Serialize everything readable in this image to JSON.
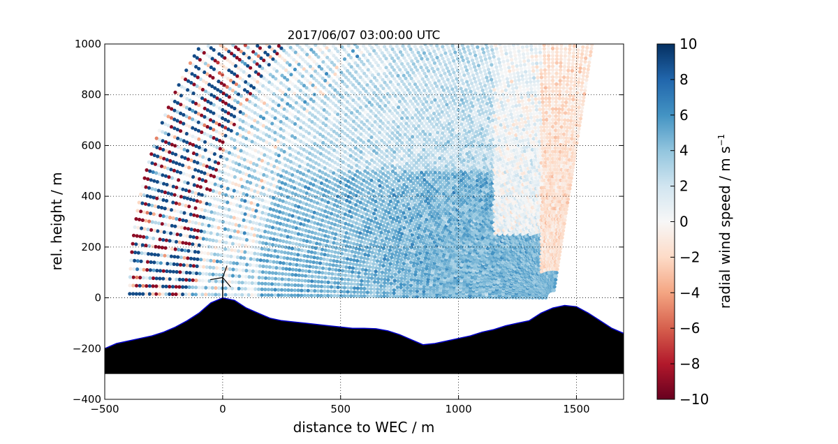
{
  "chart_data": {
    "type": "scatter",
    "title": "2017/06/07 03:00:00 UTC",
    "xlabel": "distance to WEC / m",
    "ylabel": "rel. height / m",
    "xlim": [
      -500,
      1700
    ],
    "ylim": [
      -400,
      1000
    ],
    "xticks": [
      -500,
      0,
      500,
      1000,
      1500
    ],
    "yticks": [
      -400,
      -200,
      0,
      200,
      400,
      600,
      800,
      1000
    ],
    "grid": true,
    "lidar_position": {
      "x": 1400,
      "y": 0
    },
    "scan_range_m": [
      0,
      1500
    ],
    "wec_position": {
      "x": 0,
      "hub_height": 80
    },
    "colorbar": {
      "label": "radial wind speed / m s",
      "label_superscript": "−1",
      "range": [
        -10,
        10
      ],
      "ticks": [
        -10,
        -8,
        -6,
        -4,
        -2,
        0,
        2,
        4,
        6,
        8,
        10
      ],
      "colormap": [
        "#67001f",
        "#b2182b",
        "#d6604d",
        "#f4a582",
        "#fddbc7",
        "#f7f7f7",
        "#d1e5f0",
        "#92c5de",
        "#4393c3",
        "#2166ac",
        "#053061"
      ]
    },
    "terrain": {
      "base": -300,
      "x": [
        -500,
        -450,
        -400,
        -350,
        -300,
        -250,
        -200,
        -150,
        -100,
        -50,
        0,
        50,
        100,
        150,
        200,
        250,
        300,
        350,
        400,
        450,
        500,
        550,
        600,
        650,
        700,
        750,
        800,
        850,
        900,
        950,
        1000,
        1050,
        1100,
        1150,
        1200,
        1250,
        1300,
        1350,
        1400,
        1450,
        1500,
        1550,
        1600,
        1650,
        1700
      ],
      "y": [
        -200,
        -180,
        -170,
        -160,
        -150,
        -135,
        -115,
        -90,
        -60,
        -20,
        0,
        -10,
        -40,
        -60,
        -80,
        -90,
        -95,
        -100,
        -105,
        -110,
        -115,
        -120,
        -120,
        -122,
        -130,
        -145,
        -165,
        -185,
        -180,
        -170,
        -160,
        -150,
        -135,
        -125,
        -110,
        -100,
        -90,
        -60,
        -40,
        -30,
        -35,
        -60,
        -90,
        -120,
        -140
      ]
    }
  },
  "colors": {
    "terrain": "#000000",
    "terrain_edge": "#0000cc",
    "grid": "#000000"
  }
}
